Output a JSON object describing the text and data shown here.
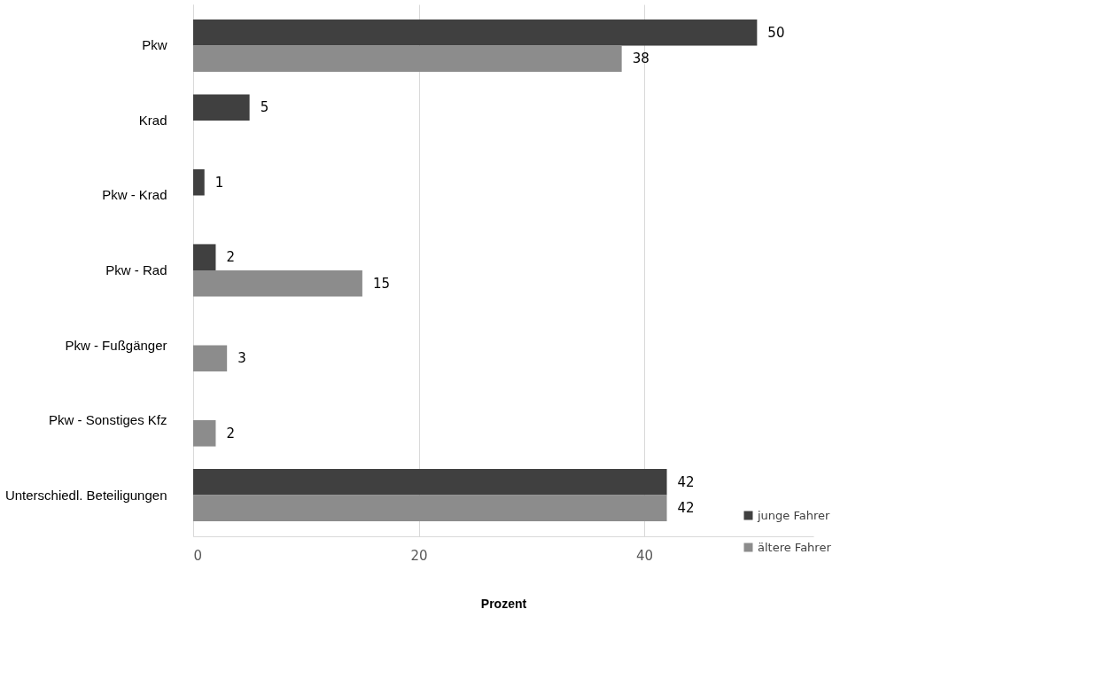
{
  "chart_data": {
    "type": "bar",
    "orientation": "horizontal",
    "xlabel": "Prozent",
    "categories": [
      "Pkw",
      "Krad",
      "Pkw - Krad",
      "Pkw - Rad",
      "Pkw - Fußgänger",
      "Pkw - Sonstiges Kfz",
      "Unterschiedl. Beteiligungen"
    ],
    "series": [
      {
        "name": "junge Fahrer",
        "color": "#404040",
        "values": [
          50,
          5,
          1,
          2,
          null,
          null,
          42
        ]
      },
      {
        "name": "ältere Fahrer",
        "color": "#8c8c8c",
        "values": [
          38,
          null,
          null,
          15,
          3,
          2,
          42
        ]
      }
    ],
    "xlim": [
      0,
      55
    ],
    "xticks": [
      0,
      20,
      40
    ],
    "grid": "x",
    "data_labels": true,
    "legend": "bottom right"
  }
}
